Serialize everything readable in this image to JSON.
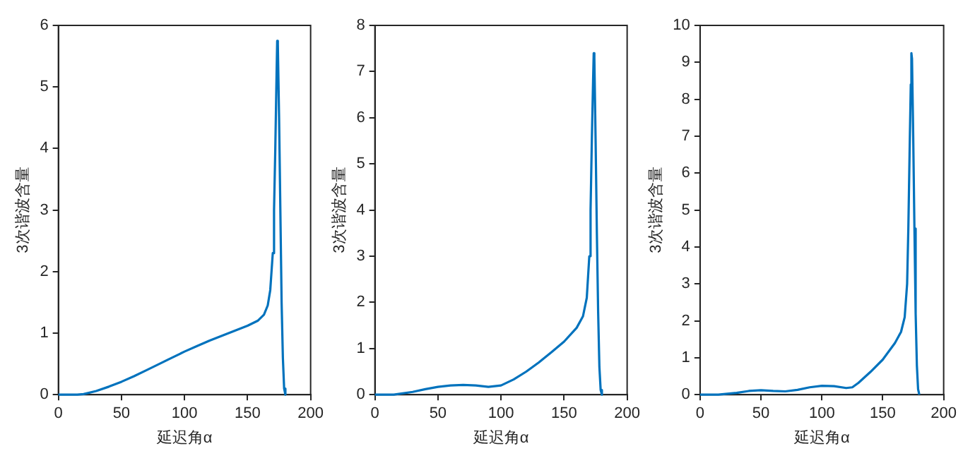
{
  "chart_data": [
    {
      "type": "line",
      "xlabel": "延迟角α",
      "ylabel": "3次谐波含量",
      "xlim": [
        0,
        200
      ],
      "xticks": [
        0,
        50,
        100,
        150,
        200
      ],
      "ylim": [
        0,
        6
      ],
      "yticks": [
        0,
        1,
        2,
        3,
        4,
        5,
        6
      ],
      "grid": false,
      "legend": false,
      "marker": "none",
      "series": [
        {
          "color": "#0072bd",
          "x": [
            0,
            15,
            20,
            30,
            40,
            50,
            60,
            70,
            80,
            90,
            100,
            110,
            120,
            130,
            140,
            150,
            158,
            163,
            166,
            168,
            170,
            171,
            172,
            173,
            173.5,
            174,
            175,
            176,
            177,
            178,
            179,
            180
          ],
          "values": [
            0,
            0,
            0.01,
            0.06,
            0.13,
            0.21,
            0.3,
            0.4,
            0.5,
            0.6,
            0.7,
            0.79,
            0.88,
            0.96,
            1.04,
            1.12,
            1.2,
            1.3,
            1.45,
            1.7,
            2.3,
            3,
            4,
            5.2,
            5.75,
            5.7,
            4.5,
            3,
            1.5,
            0.6,
            0.1,
            0
          ]
        }
      ]
    },
    {
      "type": "line",
      "xlabel": "延迟角α",
      "ylabel": "3次谐波含量",
      "xlim": [
        0,
        200
      ],
      "xticks": [
        0,
        50,
        100,
        150,
        200
      ],
      "ylim": [
        0,
        8
      ],
      "yticks": [
        0,
        1,
        2,
        3,
        4,
        5,
        6,
        7,
        8
      ],
      "grid": false,
      "legend": false,
      "marker": "none",
      "series": [
        {
          "color": "#0072bd",
          "x": [
            0,
            15,
            30,
            40,
            50,
            60,
            70,
            80,
            90,
            100,
            110,
            120,
            130,
            140,
            150,
            160,
            165,
            168,
            170,
            171,
            172,
            173,
            173.5,
            174,
            175,
            176,
            177,
            178,
            179,
            180
          ],
          "values": [
            0,
            0,
            0.06,
            0.12,
            0.17,
            0.2,
            0.21,
            0.2,
            0.17,
            0.2,
            0.33,
            0.5,
            0.7,
            0.92,
            1.15,
            1.45,
            1.7,
            2.1,
            3,
            4,
            5.5,
            6.8,
            7.4,
            7.3,
            5.5,
            3.5,
            1.8,
            0.6,
            0.1,
            0
          ]
        }
      ]
    },
    {
      "type": "line",
      "xlabel": "延迟角α",
      "ylabel": "3次谐波含量",
      "xlim": [
        0,
        200
      ],
      "xticks": [
        0,
        50,
        100,
        150,
        200
      ],
      "ylim": [
        0,
        10
      ],
      "yticks": [
        0,
        1,
        2,
        3,
        4,
        5,
        6,
        7,
        8,
        9,
        10
      ],
      "grid": false,
      "legend": false,
      "marker": "none",
      "series": [
        {
          "color": "#0072bd",
          "x": [
            0,
            15,
            30,
            40,
            50,
            60,
            70,
            80,
            90,
            100,
            110,
            120,
            125,
            130,
            140,
            150,
            160,
            165,
            168,
            170,
            171,
            172,
            173,
            173.5,
            174,
            175,
            176,
            177,
            178,
            179,
            180
          ],
          "values": [
            0,
            0,
            0.05,
            0.1,
            0.12,
            0.1,
            0.09,
            0.13,
            0.2,
            0.24,
            0.23,
            0.18,
            0.2,
            0.32,
            0.62,
            0.95,
            1.4,
            1.7,
            2.1,
            3,
            4.5,
            6.5,
            8.4,
            9.25,
            9.1,
            7,
            4.5,
            2.2,
            0.8,
            0.15,
            0
          ]
        }
      ]
    }
  ]
}
